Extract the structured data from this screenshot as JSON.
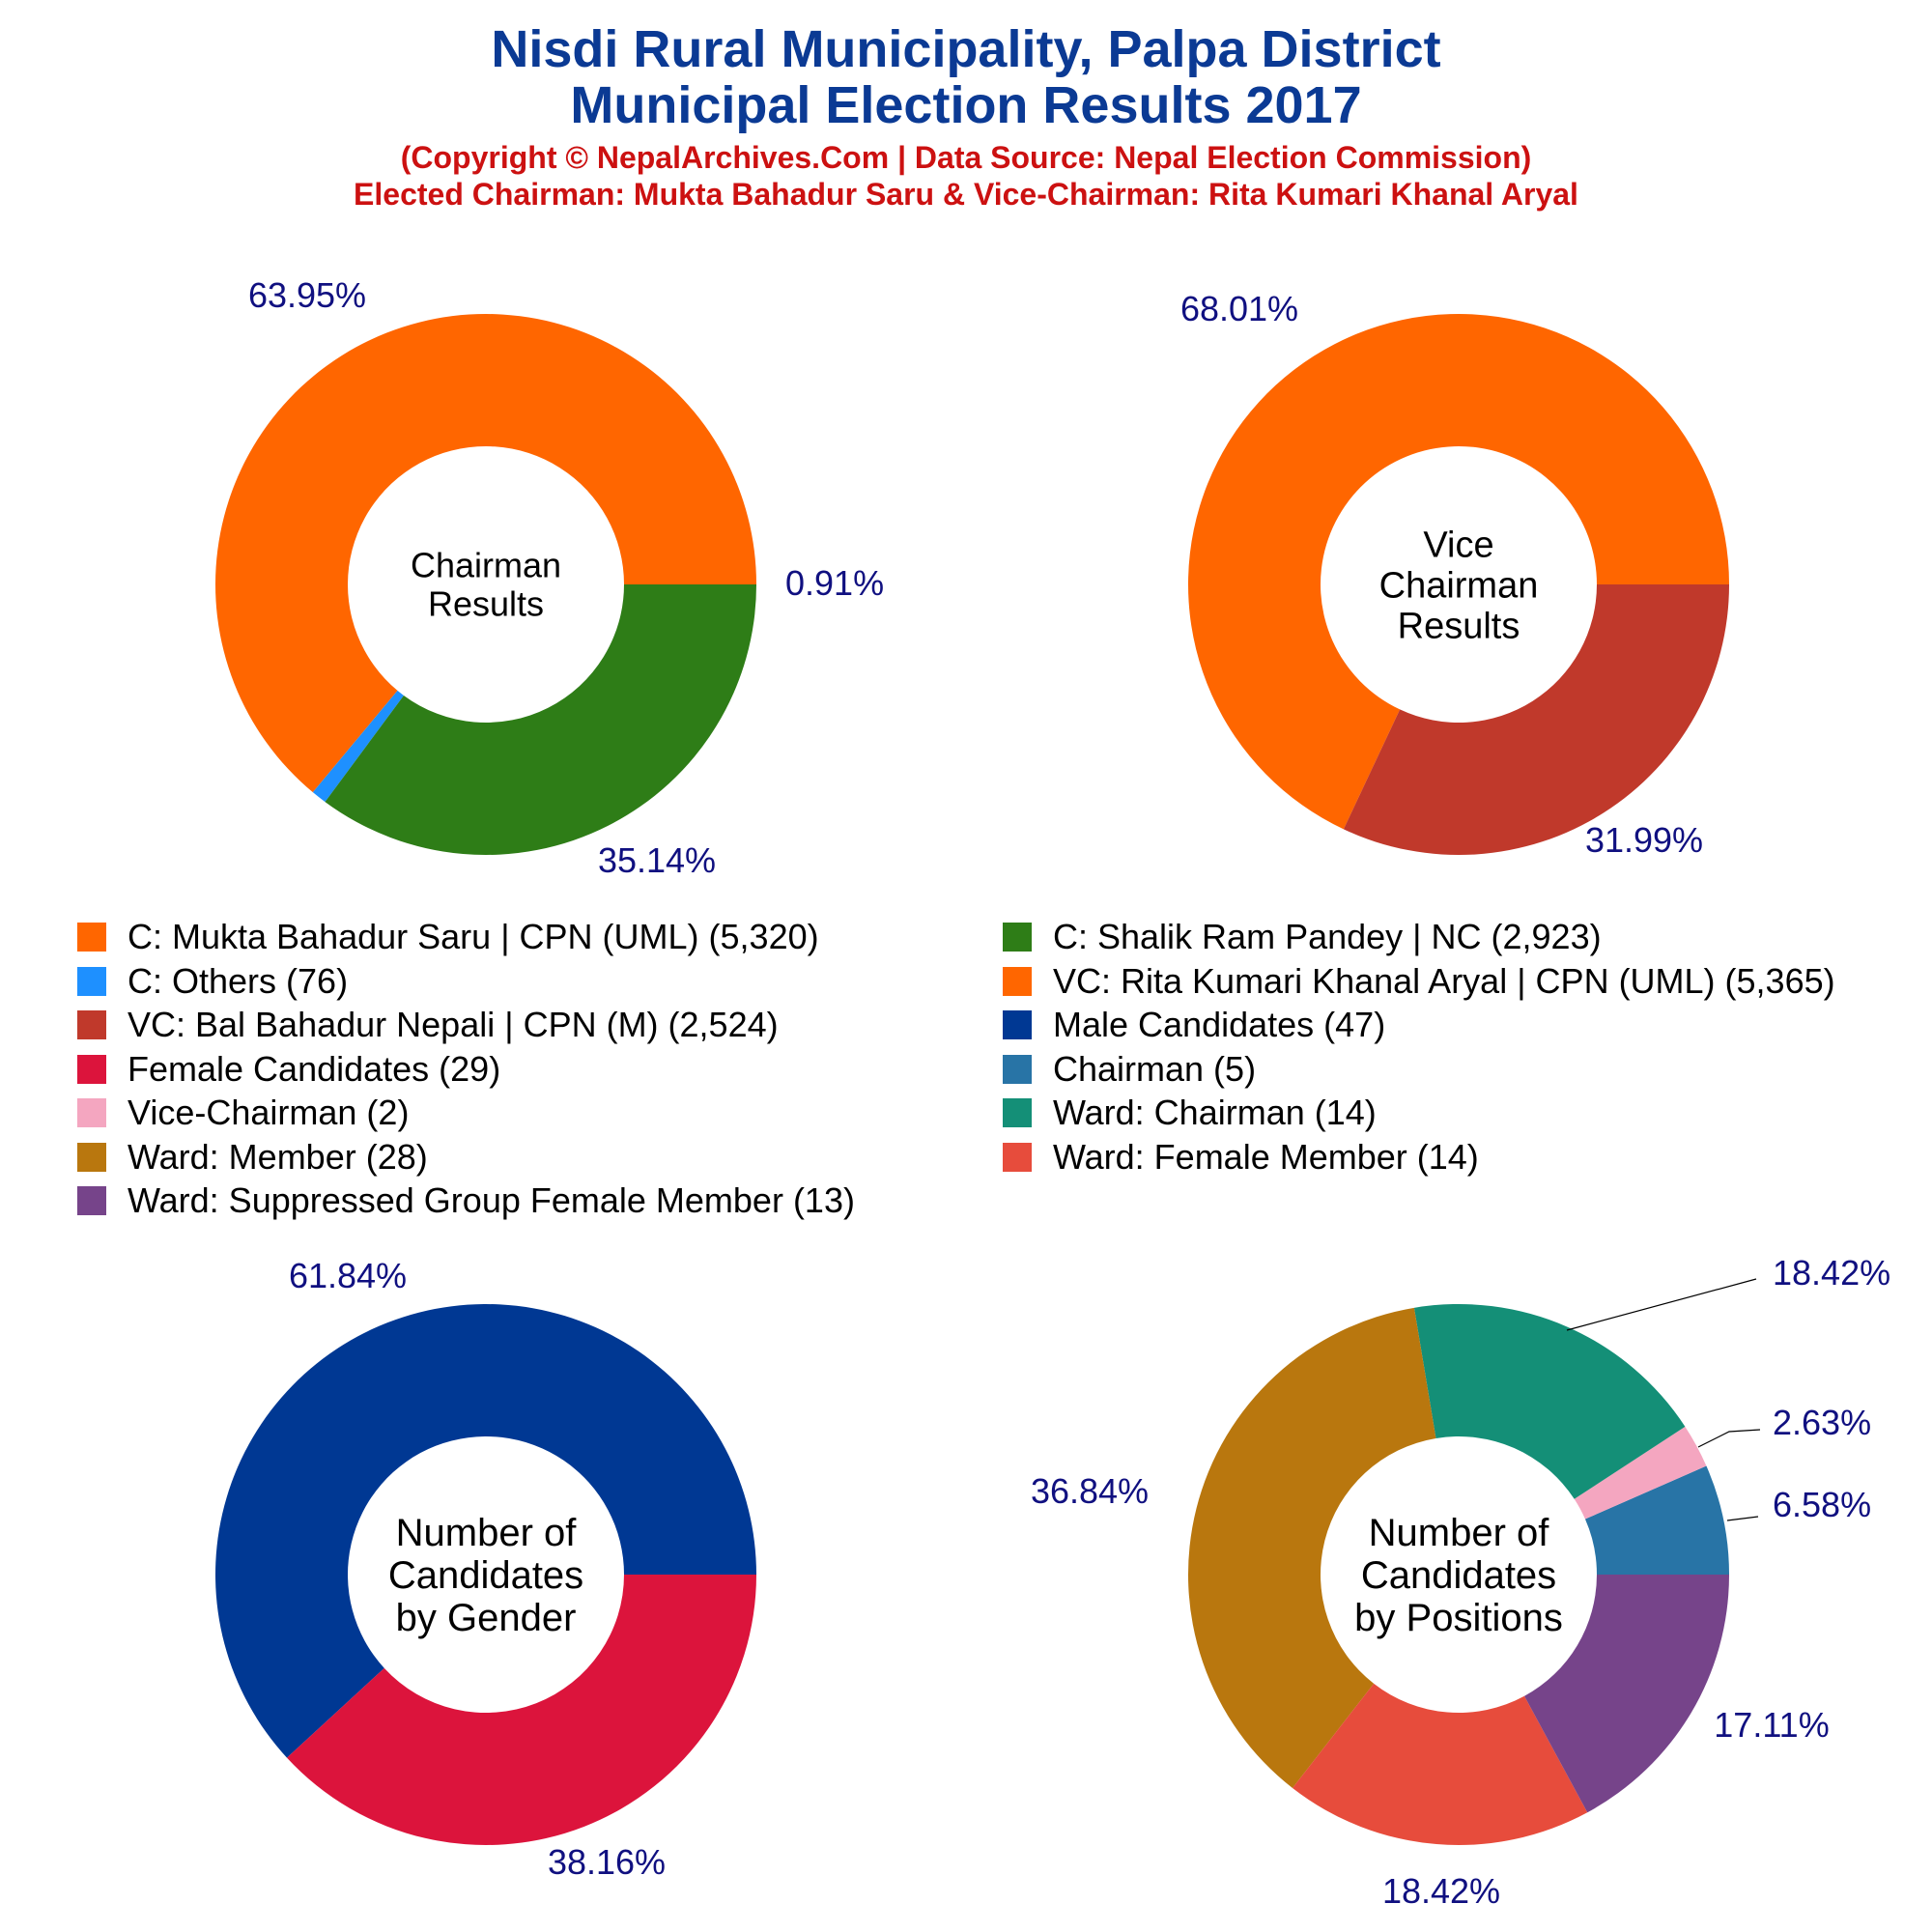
{
  "title_lines": [
    "Nisdi Rural Municipality, Palpa District",
    "Municipal Election Results 2017"
  ],
  "subtitle_lines": [
    "(Copyright © NepalArchives.Com | Data Source: Nepal Election Commission)",
    "Elected Chairman: Mukta Bahadur Saru & Vice-Chairman: Rita Kumari Khanal Aryal"
  ],
  "legend": [
    {
      "label": "C: Mukta Bahadur Saru | CPN (UML) (5,320)",
      "color": "#ff6600"
    },
    {
      "label": "C: Shalik Ram Pandey | NC (2,923)",
      "color": "#2e7d17"
    },
    {
      "label": "C: Others (76)",
      "color": "#1e90ff"
    },
    {
      "label": "VC: Rita Kumari Khanal Aryal | CPN (UML) (5,365)",
      "color": "#ff6600"
    },
    {
      "label": "VC: Bal Bahadur Nepali | CPN (M) (2,524)",
      "color": "#c0392b"
    },
    {
      "label": "Male Candidates (47)",
      "color": "#003893"
    },
    {
      "label": "Female Candidates (29)",
      "color": "#dc143c"
    },
    {
      "label": "Chairman (5)",
      "color": "#2874a6"
    },
    {
      "label": "Vice-Chairman (2)",
      "color": "#f4a6c0"
    },
    {
      "label": "Ward: Chairman (14)",
      "color": "#148f77"
    },
    {
      "label": "Ward: Member (28)",
      "color": "#b9770e"
    },
    {
      "label": "Ward: Female Member (14)",
      "color": "#e74c3c"
    },
    {
      "label": "Ward: Suppressed Group Female Member (13)",
      "color": "#76448a"
    }
  ],
  "chart_data": [
    {
      "type": "pie",
      "center_lines": [
        "Chairman",
        "Results"
      ],
      "slices": [
        {
          "name": "C: Mukta Bahadur Saru | CPN (UML)",
          "value": 5320,
          "label": "63.95%",
          "color": "#ff6600"
        },
        {
          "name": "C: Others",
          "value": 76,
          "label": "0.91%",
          "color": "#1e90ff"
        },
        {
          "name": "C: Shalik Ram Pandey | NC",
          "value": 2923,
          "label": "35.14%",
          "color": "#2e7d17"
        }
      ]
    },
    {
      "type": "pie",
      "center_lines": [
        "Vice",
        "Chairman",
        "Results"
      ],
      "slices": [
        {
          "name": "VC: Rita Kumari Khanal Aryal | CPN (UML)",
          "value": 5365,
          "label": "68.01%",
          "color": "#ff6600"
        },
        {
          "name": "VC: Bal Bahadur Nepali | CPN (M)",
          "value": 2524,
          "label": "31.99%",
          "color": "#c0392b"
        }
      ]
    },
    {
      "type": "pie",
      "center_lines": [
        "Number of",
        "Candidates",
        "by Gender"
      ],
      "slices": [
        {
          "name": "Male Candidates",
          "value": 47,
          "label": "61.84%",
          "color": "#003893"
        },
        {
          "name": "Female Candidates",
          "value": 29,
          "label": "38.16%",
          "color": "#dc143c"
        }
      ]
    },
    {
      "type": "pie",
      "center_lines": [
        "Number of",
        "Candidates",
        "by Positions"
      ],
      "slices": [
        {
          "name": "Chairman",
          "value": 5,
          "label": "6.58%",
          "color": "#2874a6"
        },
        {
          "name": "Vice-Chairman",
          "value": 2,
          "label": "2.63%",
          "color": "#f4a6c0"
        },
        {
          "name": "Ward: Chairman",
          "value": 14,
          "label": "18.42%",
          "color": "#148f77"
        },
        {
          "name": "Ward: Member",
          "value": 28,
          "label": "36.84%",
          "color": "#b9770e"
        },
        {
          "name": "Ward: Female Member",
          "value": 14,
          "label": "18.42%",
          "color": "#e74c3c"
        },
        {
          "name": "Ward: Suppressed Group Female Member",
          "value": 13,
          "label": "17.11%",
          "color": "#76448a"
        }
      ]
    }
  ]
}
